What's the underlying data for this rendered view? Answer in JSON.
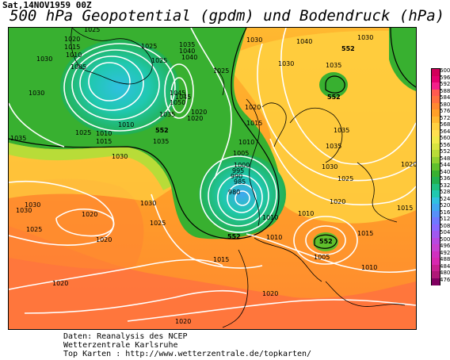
{
  "header": {
    "datestamp": "Sat,14NOV1959  00Z",
    "title": "500 hPa Geopotential (gpdm) und Bodendruck (hPa)"
  },
  "colorbar": {
    "unit": "gpdm",
    "values": [
      "600",
      "596",
      "592",
      "588",
      "584",
      "580",
      "576",
      "572",
      "568",
      "564",
      "560",
      "556",
      "552",
      "548",
      "544",
      "540",
      "536",
      "532",
      "528",
      "524",
      "520",
      "516",
      "512",
      "508",
      "504",
      "500",
      "496",
      "492",
      "488",
      "484",
      "480",
      "476"
    ],
    "colors": [
      "#d2005a",
      "#e4006e",
      "#f3208a",
      "#ff5a50",
      "#ff7040",
      "#ff8830",
      "#ffa028",
      "#ffb830",
      "#ffd040",
      "#ffe050",
      "#f0ea4a",
      "#d8e440",
      "#b8dc38",
      "#90d030",
      "#60c02c",
      "#38b030",
      "#22b050",
      "#20c080",
      "#20c8b0",
      "#30c0e0",
      "#40a8f0",
      "#5890f8",
      "#7078ff",
      "#8868ff",
      "#a058f0",
      "#b848e0",
      "#c840d0",
      "#d030c0",
      "#d828b0",
      "#c82090",
      "#b01878",
      "#800060"
    ]
  },
  "map": {
    "gpdm_labels": [
      "552",
      "552",
      "552",
      "552",
      "552"
    ],
    "isobar_labels": [
      "1025",
      "1020",
      "1015",
      "1010",
      "1005",
      "1030",
      "1035",
      "1040",
      "1045",
      "1030",
      "1025",
      "1035",
      "1040",
      "1045",
      "1050",
      "1035",
      "1030",
      "1030",
      "1025",
      "1020",
      "1015",
      "1010",
      "1010",
      "1015",
      "1020",
      "1025",
      "1030",
      "1035",
      "1030",
      "1025",
      "1020",
      "1015",
      "1010",
      "1005",
      "1000",
      "995",
      "990",
      "985",
      "980",
      "1010",
      "1020",
      "1030",
      "1035",
      "1040",
      "1030",
      "1035",
      "1030",
      "1025",
      "1020",
      "1020",
      "1015",
      "1010",
      "1005",
      "1010",
      "1010",
      "1015",
      "1020",
      "1020",
      "1020",
      "1025",
      "1030",
      "1035",
      "1025",
      "1020"
    ]
  },
  "footer": {
    "line1": "Daten: Reanalysis des NCEP",
    "line2": "Wetterzentrale Karlsruhe",
    "line3": "Top Karten :  http://www.wetterzentrale.de/topkarten/"
  }
}
